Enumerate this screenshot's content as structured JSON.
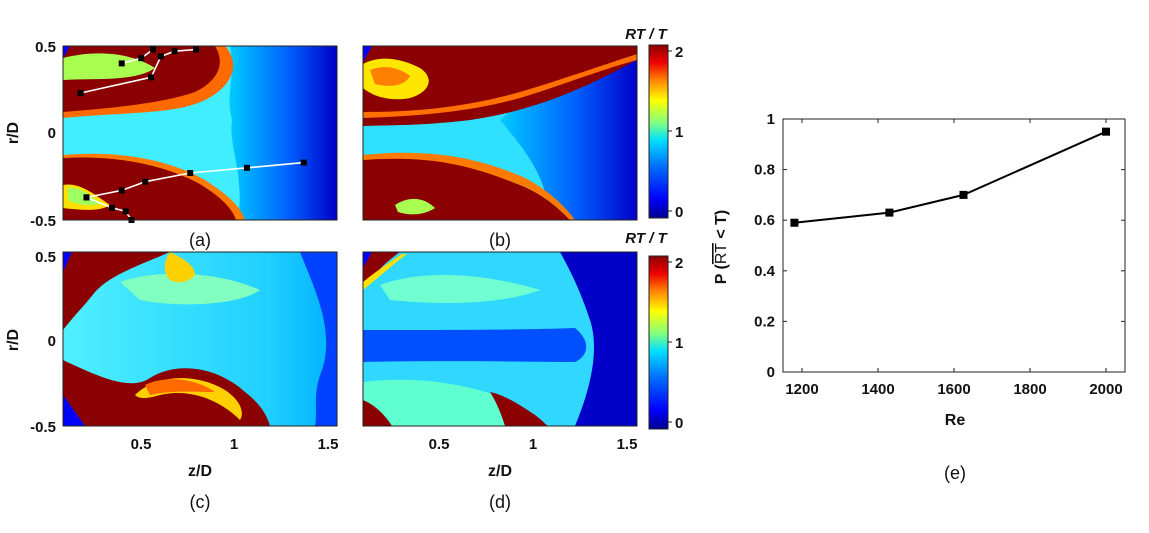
{
  "colors": {
    "jet": [
      "#00008f",
      "#0000ff",
      "#0050ff",
      "#00a0ff",
      "#00e5ff",
      "#40ffbf",
      "#a0ff60",
      "#ffff00",
      "#ffaa00",
      "#ff5000",
      "#e00000",
      "#8b0000"
    ],
    "line": "#000000",
    "marker": "#000000",
    "overlay_line": "#ffffff"
  },
  "panels": {
    "a": {
      "label": "(a)"
    },
    "b": {
      "label": "(b)"
    },
    "c": {
      "label": "(c)"
    },
    "d": {
      "label": "(d)"
    },
    "e": {
      "label": "(e)"
    }
  },
  "colorbars": [
    {
      "title": "RT / T",
      "ticks": [
        "2",
        "1",
        "0"
      ],
      "range": [
        0,
        2
      ]
    },
    {
      "title": "RT / T",
      "ticks": [
        "2",
        "1",
        "0"
      ],
      "range": [
        0,
        2
      ]
    }
  ],
  "field_axes": {
    "ylabel": "r/D",
    "xlabel": "z/D",
    "yticks": [
      "0.5",
      "0",
      "-0.5"
    ],
    "xticks": [
      "0.5",
      "1",
      "1.5"
    ]
  },
  "chart_data": [
    {
      "panel": "e",
      "type": "line",
      "xlabel": "Re",
      "ylabel": "P (RT < T)",
      "ylabel_overline": "RT",
      "x": [
        1180,
        1430,
        1625,
        2000
      ],
      "series": [
        {
          "values": [
            0.59,
            0.63,
            0.7,
            0.95
          ]
        }
      ],
      "xlim": [
        1150,
        2050
      ],
      "ylim": [
        0,
        1
      ],
      "xticks": [
        "1200",
        "1400",
        "1600",
        "1800",
        "2000"
      ],
      "yticks": [
        "0",
        "0.2",
        "0.4",
        "0.6",
        "0.8",
        "1"
      ],
      "marker": "square",
      "grid": false
    },
    {
      "panel": "a",
      "type": "heatmap",
      "x_range": [
        0.1,
        1.5
      ],
      "y_range": [
        -0.5,
        0.5
      ],
      "value_range": [
        0,
        2
      ],
      "overlay_tracks": [
        {
          "points": [
            [
              0.22,
              -0.37
            ],
            [
              0.35,
              -0.43
            ],
            [
              0.42,
              -0.45
            ],
            [
              0.45,
              -0.5
            ]
          ]
        },
        {
          "points": [
            [
              0.22,
              -0.37
            ],
            [
              0.4,
              -0.33
            ],
            [
              0.52,
              -0.28
            ],
            [
              0.75,
              -0.23
            ],
            [
              1.04,
              -0.2
            ],
            [
              1.33,
              -0.17
            ]
          ]
        },
        {
          "points": [
            [
              0.19,
              0.23
            ],
            [
              0.55,
              0.32
            ],
            [
              0.6,
              0.44
            ],
            [
              0.67,
              0.47
            ],
            [
              0.78,
              0.48
            ]
          ]
        },
        {
          "points": [
            [
              0.4,
              0.4
            ],
            [
              0.5,
              0.43
            ],
            [
              0.56,
              0.48
            ]
          ]
        }
      ]
    }
  ]
}
